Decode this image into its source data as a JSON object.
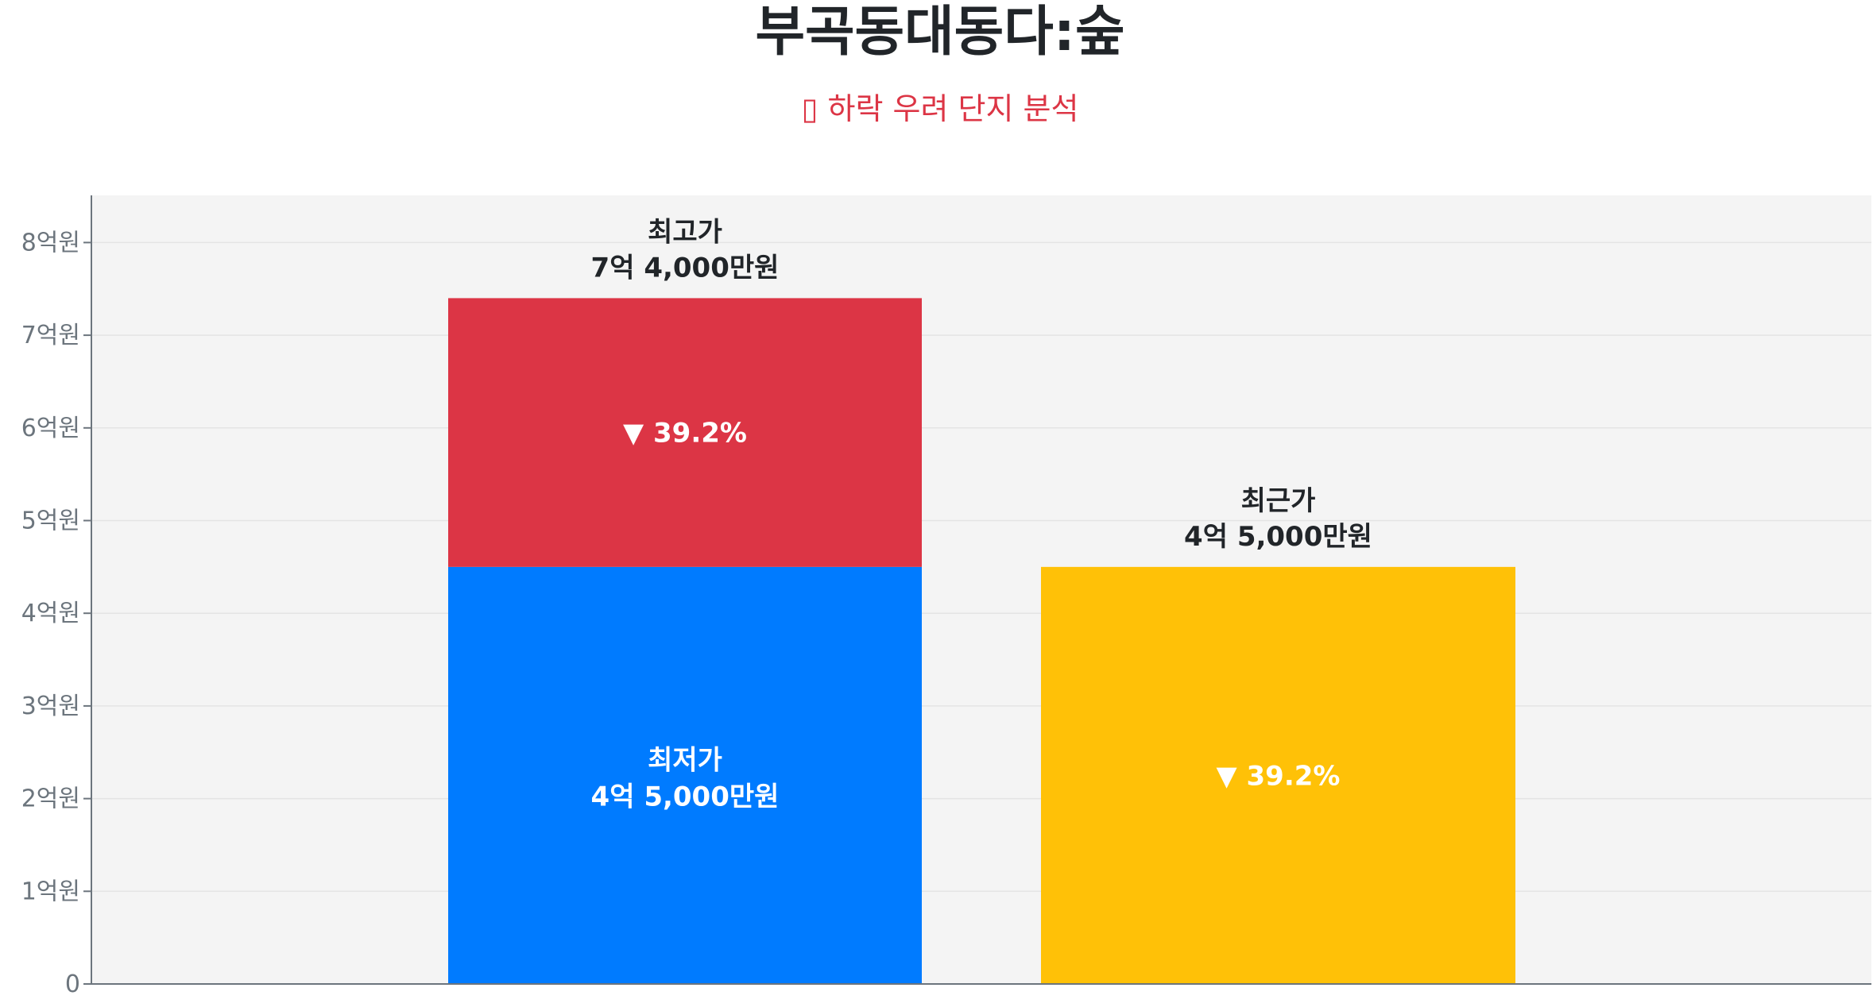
{
  "chart_data": {
    "type": "bar",
    "stacked": true,
    "title": "부곡동대동다:숲",
    "subtitle": "▯ 하락 우려 단지 분석",
    "xlabel": "",
    "ylabel": "",
    "ylim": [
      0,
      8.5
    ],
    "y_unit": "억원",
    "grid": true,
    "yticks": [
      "0",
      "1억원",
      "2억원",
      "3억원",
      "4억원",
      "5억원",
      "6억원",
      "7억원",
      "8억원"
    ],
    "bars": [
      {
        "segments": [
          {
            "name": "최저가",
            "value": 4.5,
            "color": "#007bff",
            "label": "최저가",
            "value_label": "4억 5,000만원"
          },
          {
            "name": "최고가",
            "value": 2.9,
            "total": 7.4,
            "color": "#dc3545",
            "inner_label": "▼ 39.2%"
          }
        ],
        "top_label": "최고가",
        "top_value_label": "7억 4,000만원"
      },
      {
        "segments": [
          {
            "name": "최근가",
            "value": 4.5,
            "color": "#ffc107",
            "inner_label": "▼ 39.2%"
          }
        ],
        "top_label": "최근가",
        "top_value_label": "4억 5,000만원"
      }
    ],
    "colors": {
      "plot_bg": "#f4f4f4",
      "axis": "#6c757d",
      "grid": "#e4e4e4"
    }
  }
}
